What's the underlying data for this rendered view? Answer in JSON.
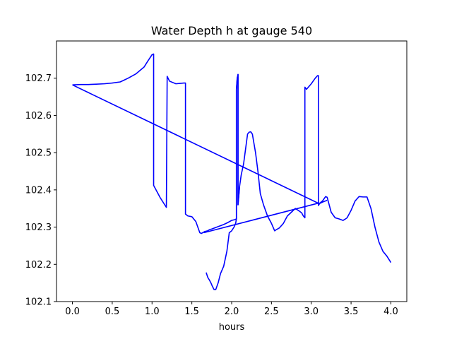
{
  "chart_data": {
    "type": "line",
    "title": "Water Depth h at gauge 540",
    "xlabel": "hours",
    "ylabel": "",
    "xlim": [
      -0.2,
      4.2
    ],
    "ylim": [
      102.1,
      102.8
    ],
    "xticks": [
      0.0,
      0.5,
      1.0,
      1.5,
      2.0,
      2.5,
      3.0,
      3.5,
      4.0
    ],
    "xtick_labels": [
      "0.0",
      "0.5",
      "1.0",
      "1.5",
      "2.0",
      "2.5",
      "3.0",
      "3.5",
      "4.0"
    ],
    "yticks": [
      102.1,
      102.2,
      102.3,
      102.4,
      102.5,
      102.6,
      102.7
    ],
    "ytick_labels": [
      "102.1",
      "102.2",
      "102.3",
      "102.4",
      "102.5",
      "102.6",
      "102.7"
    ],
    "grid": false,
    "series": [
      {
        "color": "#0000ff",
        "x": [
          0.0,
          0.1,
          0.2,
          0.3,
          0.4,
          0.5,
          0.6,
          0.65,
          0.7,
          0.8,
          0.9,
          0.95,
          1.0,
          1.02,
          1.02,
          1.1,
          1.18,
          1.19,
          1.19,
          1.22,
          1.3,
          1.4,
          1.42,
          1.42,
          1.45,
          1.5,
          1.55,
          1.6,
          1.62,
          1.66,
          1.7,
          1.72,
          1.75,
          1.8,
          1.85,
          1.9,
          1.95,
          2.0,
          2.04,
          2.06,
          2.06,
          2.07,
          2.08,
          2.08,
          2.1,
          2.12,
          2.15,
          2.2,
          2.22,
          2.24,
          2.26,
          2.3,
          2.33,
          2.36,
          2.4,
          2.45,
          2.5,
          2.54,
          2.56,
          2.6,
          2.65,
          2.7,
          2.75,
          2.8,
          2.85,
          2.88,
          2.9,
          2.92,
          2.92,
          2.94,
          3.0,
          3.05,
          3.08,
          3.09,
          3.09,
          3.11,
          3.14,
          3.18,
          3.2,
          3.25,
          3.3,
          3.35,
          3.4,
          3.43,
          3.45,
          3.5,
          3.55,
          3.6,
          3.65,
          3.7,
          3.75,
          3.8,
          3.85,
          3.88,
          3.9,
          3.95,
          4.0
        ],
        "y": [
          102.682,
          102.683,
          102.683,
          102.684,
          102.685,
          102.687,
          102.69,
          102.695,
          102.7,
          102.712,
          102.73,
          102.747,
          102.763,
          102.765,
          102.412,
          102.38,
          102.353,
          102.705,
          102.705,
          102.692,
          102.685,
          102.687,
          102.687,
          102.335,
          102.33,
          102.328,
          102.315,
          102.285,
          102.283,
          102.288,
          102.29,
          102.293,
          102.295,
          102.299,
          102.303,
          102.307,
          102.312,
          102.318,
          102.32,
          102.322,
          102.67,
          102.7,
          102.71,
          102.36,
          102.41,
          102.44,
          102.47,
          102.55,
          102.555,
          102.556,
          102.55,
          102.5,
          102.45,
          102.39,
          102.36,
          102.33,
          102.31,
          102.29,
          102.293,
          102.298,
          102.31,
          102.33,
          102.34,
          102.35,
          102.343,
          102.338,
          102.33,
          102.325,
          102.676,
          102.67,
          102.685,
          102.7,
          102.707,
          102.707,
          102.358,
          102.365,
          102.37,
          102.382,
          102.38,
          102.34,
          102.325,
          102.322,
          102.318,
          102.322,
          102.325,
          102.345,
          102.37,
          102.382,
          102.381,
          102.381,
          102.35,
          102.3,
          102.26,
          102.245,
          102.235,
          102.222,
          102.205
        ]
      },
      {
        "color": "#0000ff",
        "x": [
          1.68,
          1.7,
          1.72,
          1.74,
          1.76,
          1.78,
          1.8,
          1.83,
          1.86,
          1.9,
          1.94,
          1.97,
          2.0,
          2.03,
          2.04,
          2.05,
          2.06,
          2.06,
          2.07,
          2.08,
          2.08,
          2.1
        ],
        "y": [
          102.178,
          102.165,
          102.158,
          102.15,
          102.14,
          102.132,
          102.132,
          102.15,
          102.175,
          102.195,
          102.235,
          102.285,
          102.29,
          102.3,
          102.305,
          102.31,
          102.322,
          102.67,
          102.7,
          102.71,
          102.36,
          102.41
        ]
      },
      {
        "color": "#0000ff",
        "x": [
          0.0,
          3.1,
          3.15,
          3.2
        ],
        "y": [
          102.682,
          102.363,
          102.368,
          102.372
        ]
      },
      {
        "color": "#0000ff",
        "x": [
          1.65,
          3.1
        ],
        "y": [
          102.285,
          102.365
        ]
      }
    ]
  }
}
